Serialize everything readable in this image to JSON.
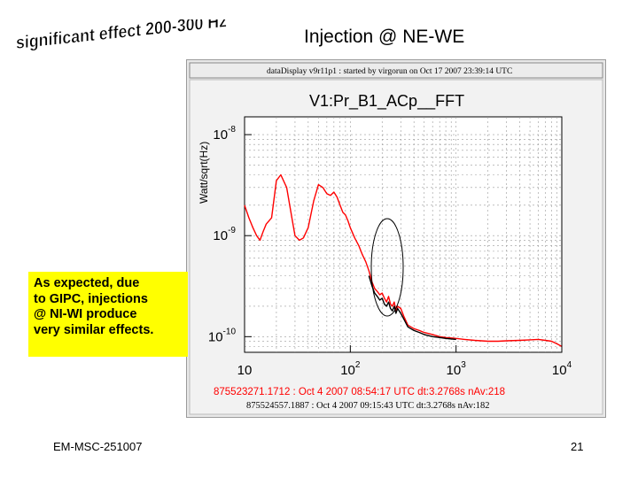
{
  "slide": {
    "wordart_text": "significant effect 200-300 Hz",
    "title": "Injection @ NE-WE",
    "callout": [
      "As expected, due",
      "to GIPC, injections",
      "@ NI-WI produce",
      "very similar effects."
    ],
    "footer_left": "EM-MSC-251007",
    "page_number": "21"
  },
  "colors": {
    "series_red": "#ff0000",
    "series_black": "#000000",
    "callout_bg": "#ffff00",
    "wordart_fill": "#000000"
  },
  "chart_data": {
    "type": "line",
    "header": "dataDisplay v9r11p1 : started by virgorun on Oct 17 2007 23:39:14 UTC",
    "title": "V1:Pr_B1_ACp__FFT",
    "ylabel": "Watt/sqrt(Hz)",
    "xlabel": "",
    "xscale": "log",
    "yscale": "log",
    "xlim": [
      10,
      10000
    ],
    "ylim": [
      7e-11,
      1.5e-08
    ],
    "xticks": [
      {
        "base": "10",
        "exp": ""
      },
      {
        "base": "10",
        "exp": "2"
      },
      {
        "base": "10",
        "exp": "3"
      },
      {
        "base": "10",
        "exp": "4"
      }
    ],
    "yticks": [
      {
        "base": "10",
        "exp": "-8"
      },
      {
        "base": "10",
        "exp": "-9"
      },
      {
        "base": "10",
        "exp": "-10"
      }
    ],
    "grid": true,
    "annotation": "ellipse around 200-350 Hz",
    "series": [
      {
        "name": "875523271.1712 : Oct  4 2007 08:54:17 UTC dt:3.2768s nAv:218",
        "color": "#ff0000",
        "x": [
          10,
          11,
          12,
          13,
          14,
          15,
          16,
          18,
          20,
          22,
          25,
          28,
          30,
          33,
          36,
          40,
          45,
          50,
          55,
          60,
          65,
          70,
          75,
          80,
          85,
          90,
          95,
          100,
          110,
          120,
          130,
          140,
          150,
          160,
          170,
          180,
          190,
          200,
          210,
          220,
          230,
          240,
          250,
          260,
          270,
          280,
          300,
          320,
          350,
          400,
          450,
          500,
          600,
          700,
          800,
          900,
          1000,
          1200,
          1500,
          2000,
          2500,
          3000,
          4000,
          5000,
          6000,
          7000,
          8000,
          9000,
          10000
        ],
        "y": [
          2e-09,
          1.5e-09,
          1.2e-09,
          1e-09,
          9e-10,
          1.1e-09,
          1.3e-09,
          1.5e-09,
          3.5e-09,
          4e-09,
          3e-09,
          1.5e-09,
          1e-09,
          9e-10,
          9.5e-10,
          1.2e-09,
          2.2e-09,
          3.2e-09,
          3e-09,
          2.6e-09,
          2.5e-09,
          2.7e-09,
          2.4e-09,
          2e-09,
          1.7e-09,
          1.6e-09,
          1.4e-09,
          1.2e-09,
          9.5e-10,
          8e-10,
          6.5e-10,
          5.5e-10,
          4.5e-10,
          3.5e-10,
          3e-10,
          2.8e-10,
          2.6e-10,
          2.7e-10,
          2.4e-10,
          2.2e-10,
          2.5e-10,
          2.1e-10,
          2e-10,
          2.2e-10,
          1.8e-10,
          2e-10,
          1.9e-10,
          1.6e-10,
          1.3e-10,
          1.2e-10,
          1.15e-10,
          1.1e-10,
          1.05e-10,
          1e-10,
          9.8e-11,
          9.7e-11,
          9.6e-11,
          9.4e-11,
          9.2e-11,
          9e-11,
          9e-11,
          9.1e-11,
          9.2e-11,
          9.3e-11,
          9.4e-11,
          9.2e-11,
          9e-11,
          8.5e-11,
          8e-11
        ]
      },
      {
        "name": "875524557.1887 : Oct  4 2007 09:15:43 UTC dt:3.2768s nAv:182",
        "color": "#000000",
        "x": [
          150,
          160,
          170,
          180,
          190,
          200,
          210,
          220,
          230,
          240,
          250,
          260,
          270,
          280,
          300,
          320,
          350,
          400,
          450,
          500,
          600,
          700,
          800,
          900,
          1000
        ],
        "y": [
          4e-10,
          3.2e-10,
          2.7e-10,
          2.5e-10,
          2.3e-10,
          2.4e-10,
          2.1e-10,
          2e-10,
          2.2e-10,
          1.9e-10,
          1.8e-10,
          2e-10,
          1.7e-10,
          1.9e-10,
          1.7e-10,
          1.5e-10,
          1.25e-10,
          1.15e-10,
          1.1e-10,
          1.05e-10,
          1e-10,
          9.8e-11,
          9.6e-11,
          9.5e-11,
          9.4e-11
        ]
      }
    ]
  }
}
